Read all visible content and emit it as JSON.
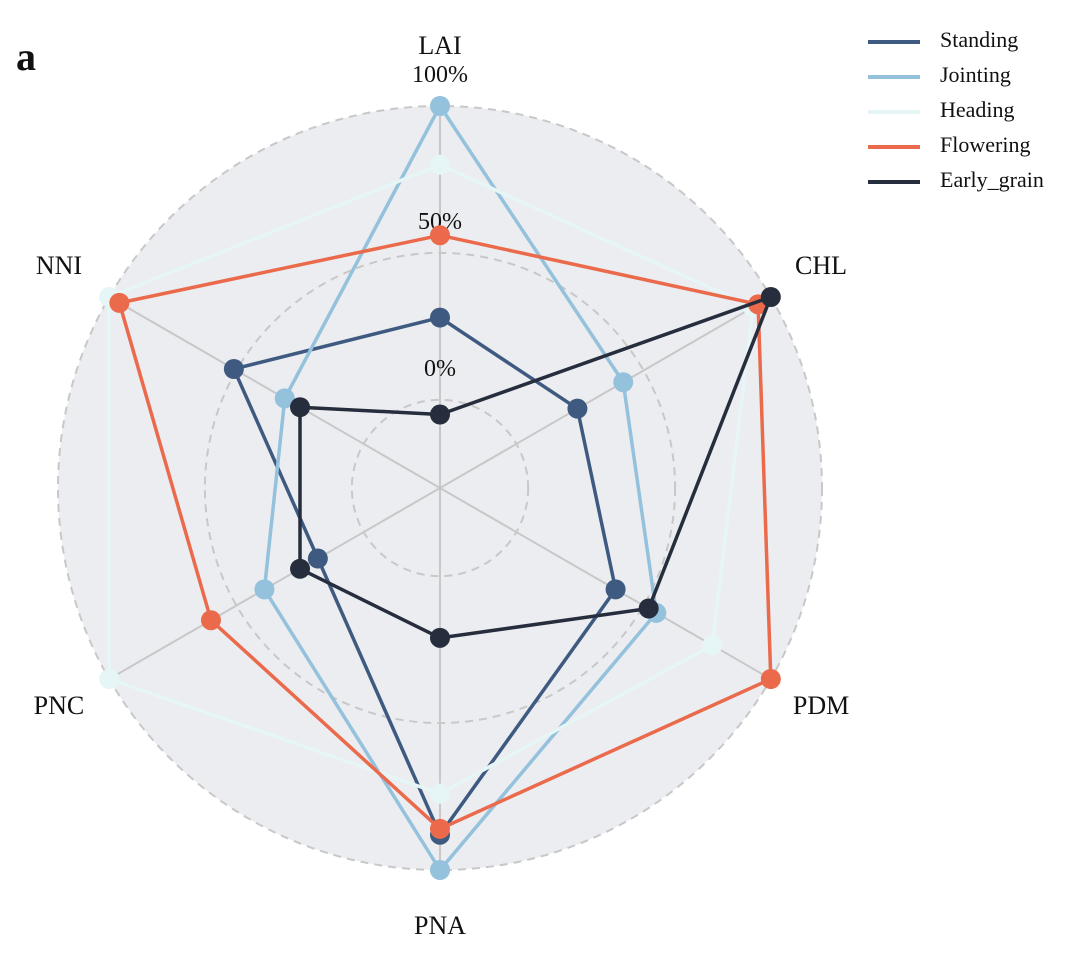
{
  "panel_label": "a",
  "colors": {
    "background_disc": "#ebedf1",
    "grid": "#c8c8c8"
  },
  "chart_data": {
    "type": "radar",
    "axes": [
      "LAI",
      "CHL",
      "PDM",
      "PNA",
      "PNC",
      "NNI"
    ],
    "ticks": [
      {
        "value": 0,
        "label": "0%"
      },
      {
        "value": 50,
        "label": "50%"
      },
      {
        "value": 100,
        "label": "100%"
      }
    ],
    "range": [
      -30,
      100
    ],
    "grid": true,
    "legend_position": "top-right",
    "series": [
      {
        "name": "Standing",
        "color": "#3f5a80",
        "values": [
          28,
          24,
          39,
          88,
          18,
          51
        ]
      },
      {
        "name": "Jointing",
        "color": "#94c1dc",
        "values": [
          100,
          42,
          55,
          100,
          39,
          31
        ]
      },
      {
        "name": "Heading",
        "color": "#e6f5f5",
        "values": [
          80,
          93,
          77,
          74,
          100,
          100
        ]
      },
      {
        "name": "Flowering",
        "color": "#ea6a4b",
        "values": [
          56,
          95,
          100,
          86,
          60,
          96
        ]
      },
      {
        "name": "Early_grain",
        "color": "#262d3d",
        "values": [
          -5,
          100,
          52,
          21,
          25,
          25
        ]
      }
    ]
  }
}
